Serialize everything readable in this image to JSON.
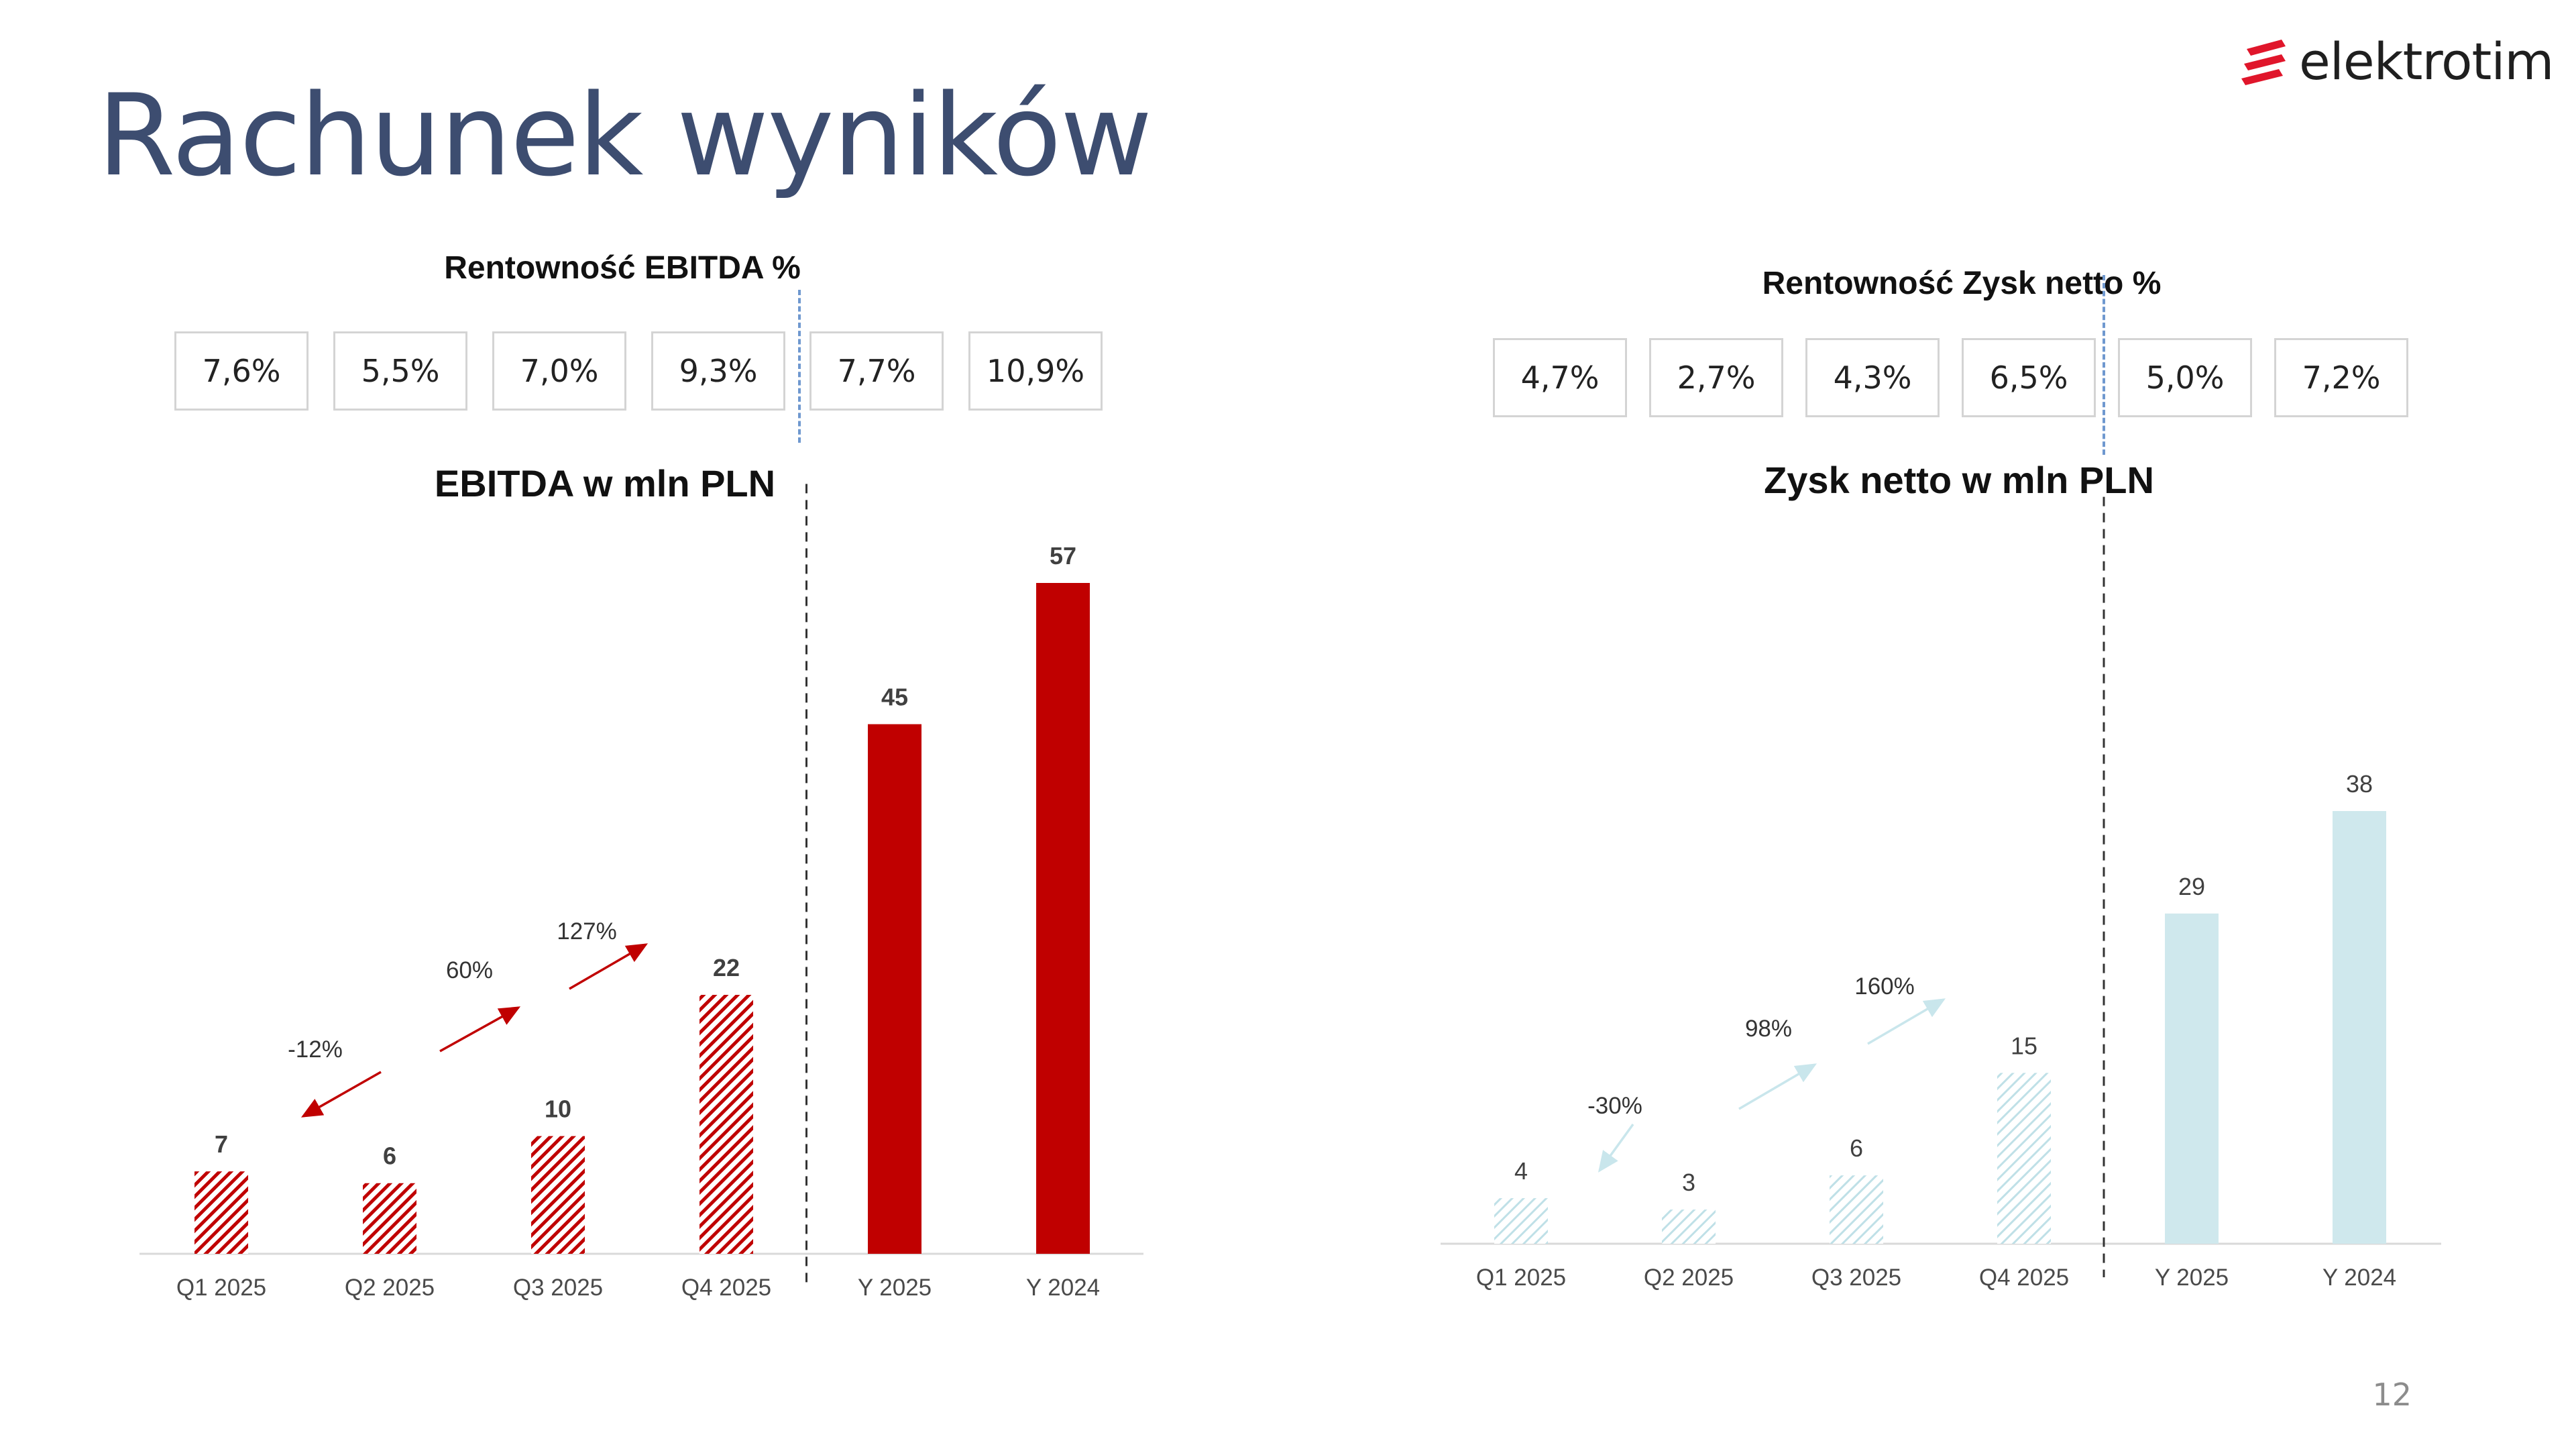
{
  "slide": {
    "title": "Rachunek wyników",
    "logo_text": "elektrotim",
    "page_number": "12",
    "colors": {
      "title": "#3d4d70",
      "ebitda": "#c00000",
      "net": "#cfe8ed",
      "net_text": "#c9e6ec",
      "divider": "#6f98cf"
    }
  },
  "left": {
    "ratio_title": "Rentowność EBITDA %",
    "ratios": [
      "7,6%",
      "5,5%",
      "7,0%",
      "9,3%",
      "7,7%",
      "10,9%"
    ]
  },
  "right": {
    "ratio_title": "Rentowność Zysk netto %",
    "ratios": [
      "4,7%",
      "2,7%",
      "4,3%",
      "6,5%",
      "5,0%",
      "7,2%"
    ]
  },
  "chart_data": [
    {
      "type": "bar",
      "title": "EBITDA w mln PLN",
      "categories": [
        "Q1 2025",
        "Q2 2025",
        "Q3 2025",
        "Q4 2025",
        "Y 2025",
        "Y 2024"
      ],
      "values": [
        7,
        6,
        10,
        22,
        45,
        57
      ],
      "labels": [
        "7",
        "6",
        "10",
        "22",
        "45",
        "57"
      ],
      "fill": [
        "hatched",
        "hatched",
        "hatched",
        "hatched",
        "solid",
        "solid"
      ],
      "ylim": [
        0,
        60
      ],
      "grid": false,
      "color": "#c00000",
      "annotations": [
        {
          "text": "-12%",
          "from": "Q2 2025",
          "to": "Q1 2025"
        },
        {
          "text": "60%",
          "from": "Q2 2025",
          "to": "Q3 2025"
        },
        {
          "text": "127%",
          "from": "Q3 2025",
          "to": "Q4 2025"
        }
      ],
      "label_color": "#404040"
    },
    {
      "type": "bar",
      "title": "Zysk netto w mln PLN",
      "categories": [
        "Q1 2025",
        "Q2 2025",
        "Q3 2025",
        "Q4 2025",
        "Y 2025",
        "Y 2024"
      ],
      "values": [
        4,
        3,
        6,
        15,
        29,
        38
      ],
      "labels": [
        "4",
        "3",
        "6",
        "15",
        "29",
        "38"
      ],
      "fill": [
        "hatched",
        "hatched",
        "hatched",
        "hatched",
        "solid",
        "solid"
      ],
      "ylim": [
        0,
        60
      ],
      "grid": false,
      "color": "#cfe8ed",
      "annotations": [
        {
          "text": "-30%",
          "from": "Q2 2025",
          "to": "Q1 2025"
        },
        {
          "text": "98%",
          "from": "Q2 2025",
          "to": "Q3 2025"
        },
        {
          "text": "160%",
          "from": "Q3 2025",
          "to": "Q4 2025"
        }
      ],
      "label_color": "#404040"
    }
  ]
}
